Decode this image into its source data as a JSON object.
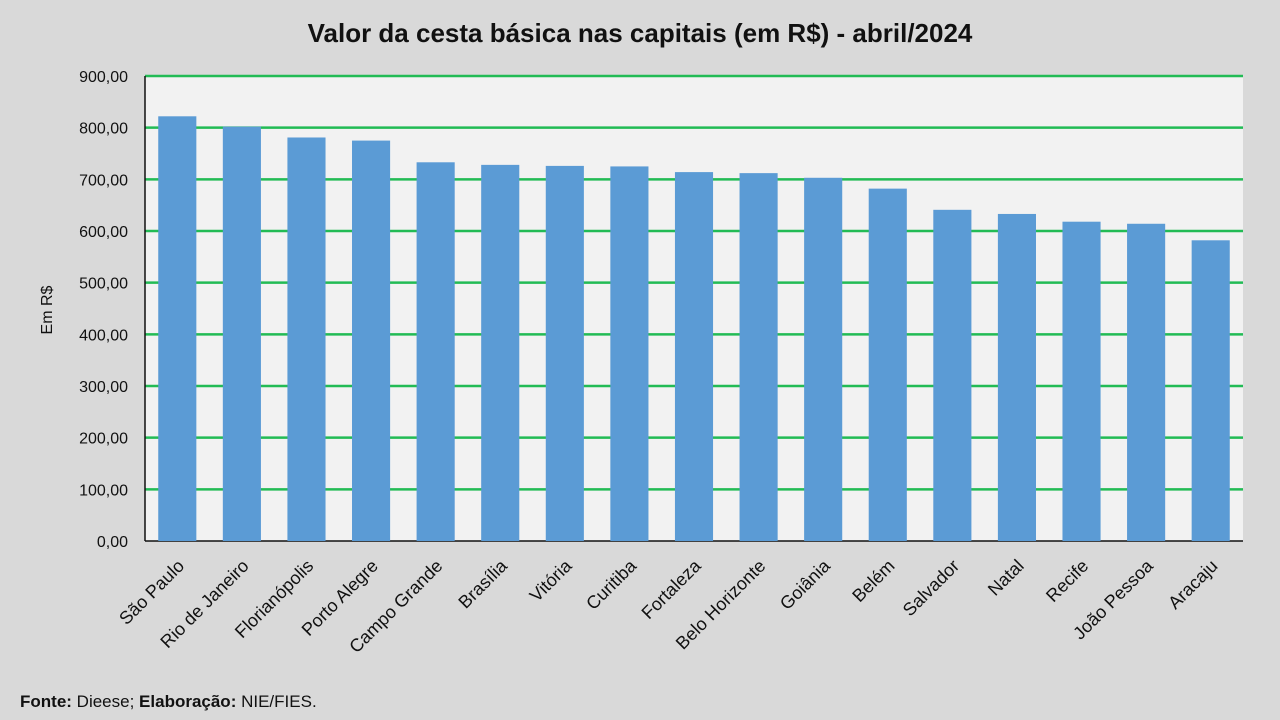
{
  "chart_data": {
    "type": "bar",
    "title": "Valor da cesta básica nas capitais (em R$) - abril/2024",
    "ylabel": "Em R$",
    "xlabel": "",
    "ylim": [
      0,
      900
    ],
    "yticks": [
      "0,00",
      "100,00",
      "200,00",
      "300,00",
      "400,00",
      "500,00",
      "600,00",
      "700,00",
      "800,00",
      "900,00"
    ],
    "categories": [
      "São Paulo",
      "Rio de Janeiro",
      "Florianópolis",
      "Porto Alegre",
      "Campo Grande",
      "Brasília",
      "Vitória",
      "Curitiba",
      "Fortaleza",
      "Belo Horizonte",
      "Goiânia",
      "Belém",
      "Salvador",
      "Natal",
      "Recife",
      "João Pessoa",
      "Aracaju"
    ],
    "values": [
      822,
      802,
      781,
      775,
      733,
      728,
      726,
      725,
      714,
      712,
      703,
      682,
      641,
      633,
      618,
      614,
      582
    ],
    "grid": true,
    "colors": {
      "bar": "#5b9bd5",
      "grid": "#22bb55",
      "plot_bg": "#f2f2f2"
    }
  },
  "footer": {
    "source_label": "Fonte:",
    "source_value": "Dieese;",
    "elab_label": "Elaboração:",
    "elab_value": "NIE/FIES."
  }
}
